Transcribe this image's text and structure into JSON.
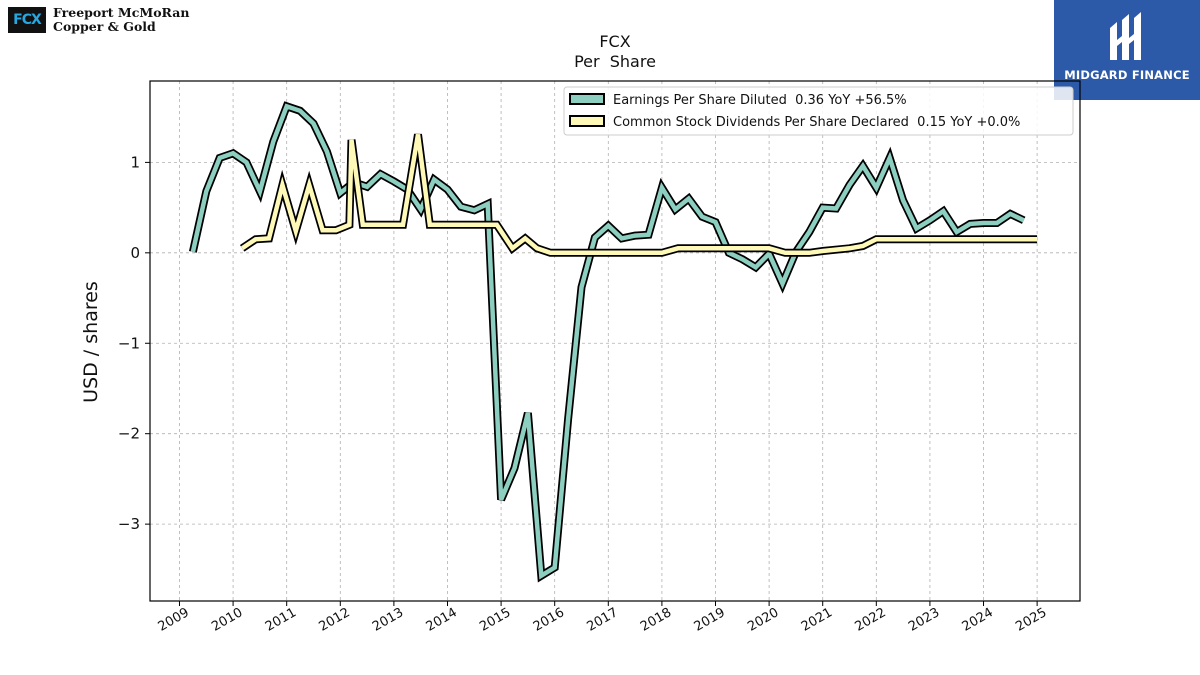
{
  "company": {
    "logo_mark": "FCX",
    "name_line1": "Freeport McMoRan",
    "name_line2": "Copper & Gold"
  },
  "brand": {
    "name": "MIDGARD FINANCE",
    "color": "#2c5aa8"
  },
  "chart_data": {
    "type": "line",
    "title": "FCX",
    "subtitle": "Per  Share",
    "ylabel": "USD / shares",
    "xlabel": "",
    "xlim": [
      2008.45,
      2025.8
    ],
    "ylim": [
      -3.85,
      1.9
    ],
    "x_ticks": [
      "2009",
      "2010",
      "2011",
      "2012",
      "2013",
      "2014",
      "2015",
      "2016",
      "2017",
      "2018",
      "2019",
      "2020",
      "2021",
      "2022",
      "2023",
      "2024",
      "2025"
    ],
    "y_ticks": [
      -3,
      -2,
      -1,
      0,
      1
    ],
    "y_tick_labels": [
      "−3",
      "−2",
      "−1",
      "0",
      "1"
    ],
    "grid": true,
    "legend_position": "top-right",
    "series": [
      {
        "name": "Earnings Per Share Diluted  0.36 YoY +56.5%",
        "color": "#8ccfc0",
        "points": [
          [
            2009.25,
            0.01
          ],
          [
            2009.5,
            0.68
          ],
          [
            2009.75,
            1.05
          ],
          [
            2010.0,
            1.1
          ],
          [
            2010.25,
            1.0
          ],
          [
            2010.5,
            0.68
          ],
          [
            2010.75,
            1.23
          ],
          [
            2011.0,
            1.62
          ],
          [
            2011.25,
            1.57
          ],
          [
            2011.5,
            1.43
          ],
          [
            2011.75,
            1.12
          ],
          [
            2012.0,
            0.66
          ],
          [
            2012.25,
            0.78
          ],
          [
            2012.5,
            0.73
          ],
          [
            2012.75,
            0.87
          ],
          [
            2013.0,
            0.79
          ],
          [
            2013.25,
            0.7
          ],
          [
            2013.5,
            0.48
          ],
          [
            2013.75,
            0.81
          ],
          [
            2014.0,
            0.7
          ],
          [
            2014.25,
            0.51
          ],
          [
            2014.5,
            0.47
          ],
          [
            2014.75,
            0.54
          ],
          [
            2015.0,
            -2.73
          ],
          [
            2015.25,
            -2.38
          ],
          [
            2015.5,
            -1.77
          ],
          [
            2015.75,
            -3.57
          ],
          [
            2016.0,
            -3.48
          ],
          [
            2016.25,
            -1.84
          ],
          [
            2016.5,
            -0.38
          ],
          [
            2016.75,
            0.17
          ],
          [
            2017.0,
            0.3
          ],
          [
            2017.25,
            0.16
          ],
          [
            2017.5,
            0.19
          ],
          [
            2017.75,
            0.2
          ],
          [
            2018.0,
            0.72
          ],
          [
            2018.25,
            0.48
          ],
          [
            2018.5,
            0.6
          ],
          [
            2018.75,
            0.4
          ],
          [
            2019.0,
            0.34
          ],
          [
            2019.25,
            0.0
          ],
          [
            2019.5,
            -0.07
          ],
          [
            2019.75,
            -0.16
          ],
          [
            2020.0,
            -0.01
          ],
          [
            2020.25,
            -0.34
          ],
          [
            2020.5,
            0.01
          ],
          [
            2020.75,
            0.23
          ],
          [
            2021.0,
            0.5
          ],
          [
            2021.25,
            0.49
          ],
          [
            2021.5,
            0.75
          ],
          [
            2021.75,
            0.96
          ],
          [
            2022.0,
            0.72
          ],
          [
            2022.25,
            1.05
          ],
          [
            2022.5,
            0.58
          ],
          [
            2022.75,
            0.27
          ],
          [
            2023.0,
            0.36
          ],
          [
            2023.25,
            0.46
          ],
          [
            2023.5,
            0.23
          ],
          [
            2023.75,
            0.32
          ],
          [
            2024.0,
            0.33
          ],
          [
            2024.25,
            0.33
          ],
          [
            2024.5,
            0.43
          ],
          [
            2024.75,
            0.36
          ]
        ]
      },
      {
        "name": "Common Stock Dividends Per Share Declared  0.15 YoY +0.0%",
        "color": "#fff9b8",
        "points": [
          [
            2010.17,
            0.05
          ],
          [
            2010.42,
            0.15
          ],
          [
            2010.67,
            0.16
          ],
          [
            2010.92,
            0.75
          ],
          [
            2011.17,
            0.24
          ],
          [
            2011.42,
            0.75
          ],
          [
            2011.67,
            0.25
          ],
          [
            2011.92,
            0.25
          ],
          [
            2012.17,
            0.31
          ],
          [
            2012.21,
            1.25
          ],
          [
            2012.42,
            0.31
          ],
          [
            2012.67,
            0.31
          ],
          [
            2012.92,
            0.31
          ],
          [
            2013.17,
            0.31
          ],
          [
            2013.45,
            1.31
          ],
          [
            2013.67,
            0.31
          ],
          [
            2013.92,
            0.31
          ],
          [
            2014.17,
            0.31
          ],
          [
            2014.42,
            0.31
          ],
          [
            2014.67,
            0.31
          ],
          [
            2014.92,
            0.31
          ],
          [
            2015.21,
            0.05
          ],
          [
            2015.45,
            0.16
          ],
          [
            2015.67,
            0.05
          ],
          [
            2015.92,
            0.0
          ],
          [
            2016.5,
            0.0
          ],
          [
            2017.5,
            0.0
          ],
          [
            2018.0,
            0.0
          ],
          [
            2018.3,
            0.05
          ],
          [
            2019.0,
            0.05
          ],
          [
            2020.0,
            0.05
          ],
          [
            2020.3,
            0.0
          ],
          [
            2020.75,
            0.0
          ],
          [
            2021.0,
            0.02
          ],
          [
            2021.5,
            0.05
          ],
          [
            2021.75,
            0.075
          ],
          [
            2022.0,
            0.15
          ],
          [
            2022.5,
            0.15
          ],
          [
            2023.0,
            0.15
          ],
          [
            2023.5,
            0.15
          ],
          [
            2024.0,
            0.15
          ],
          [
            2024.5,
            0.15
          ],
          [
            2025.0,
            0.15
          ]
        ]
      }
    ]
  }
}
